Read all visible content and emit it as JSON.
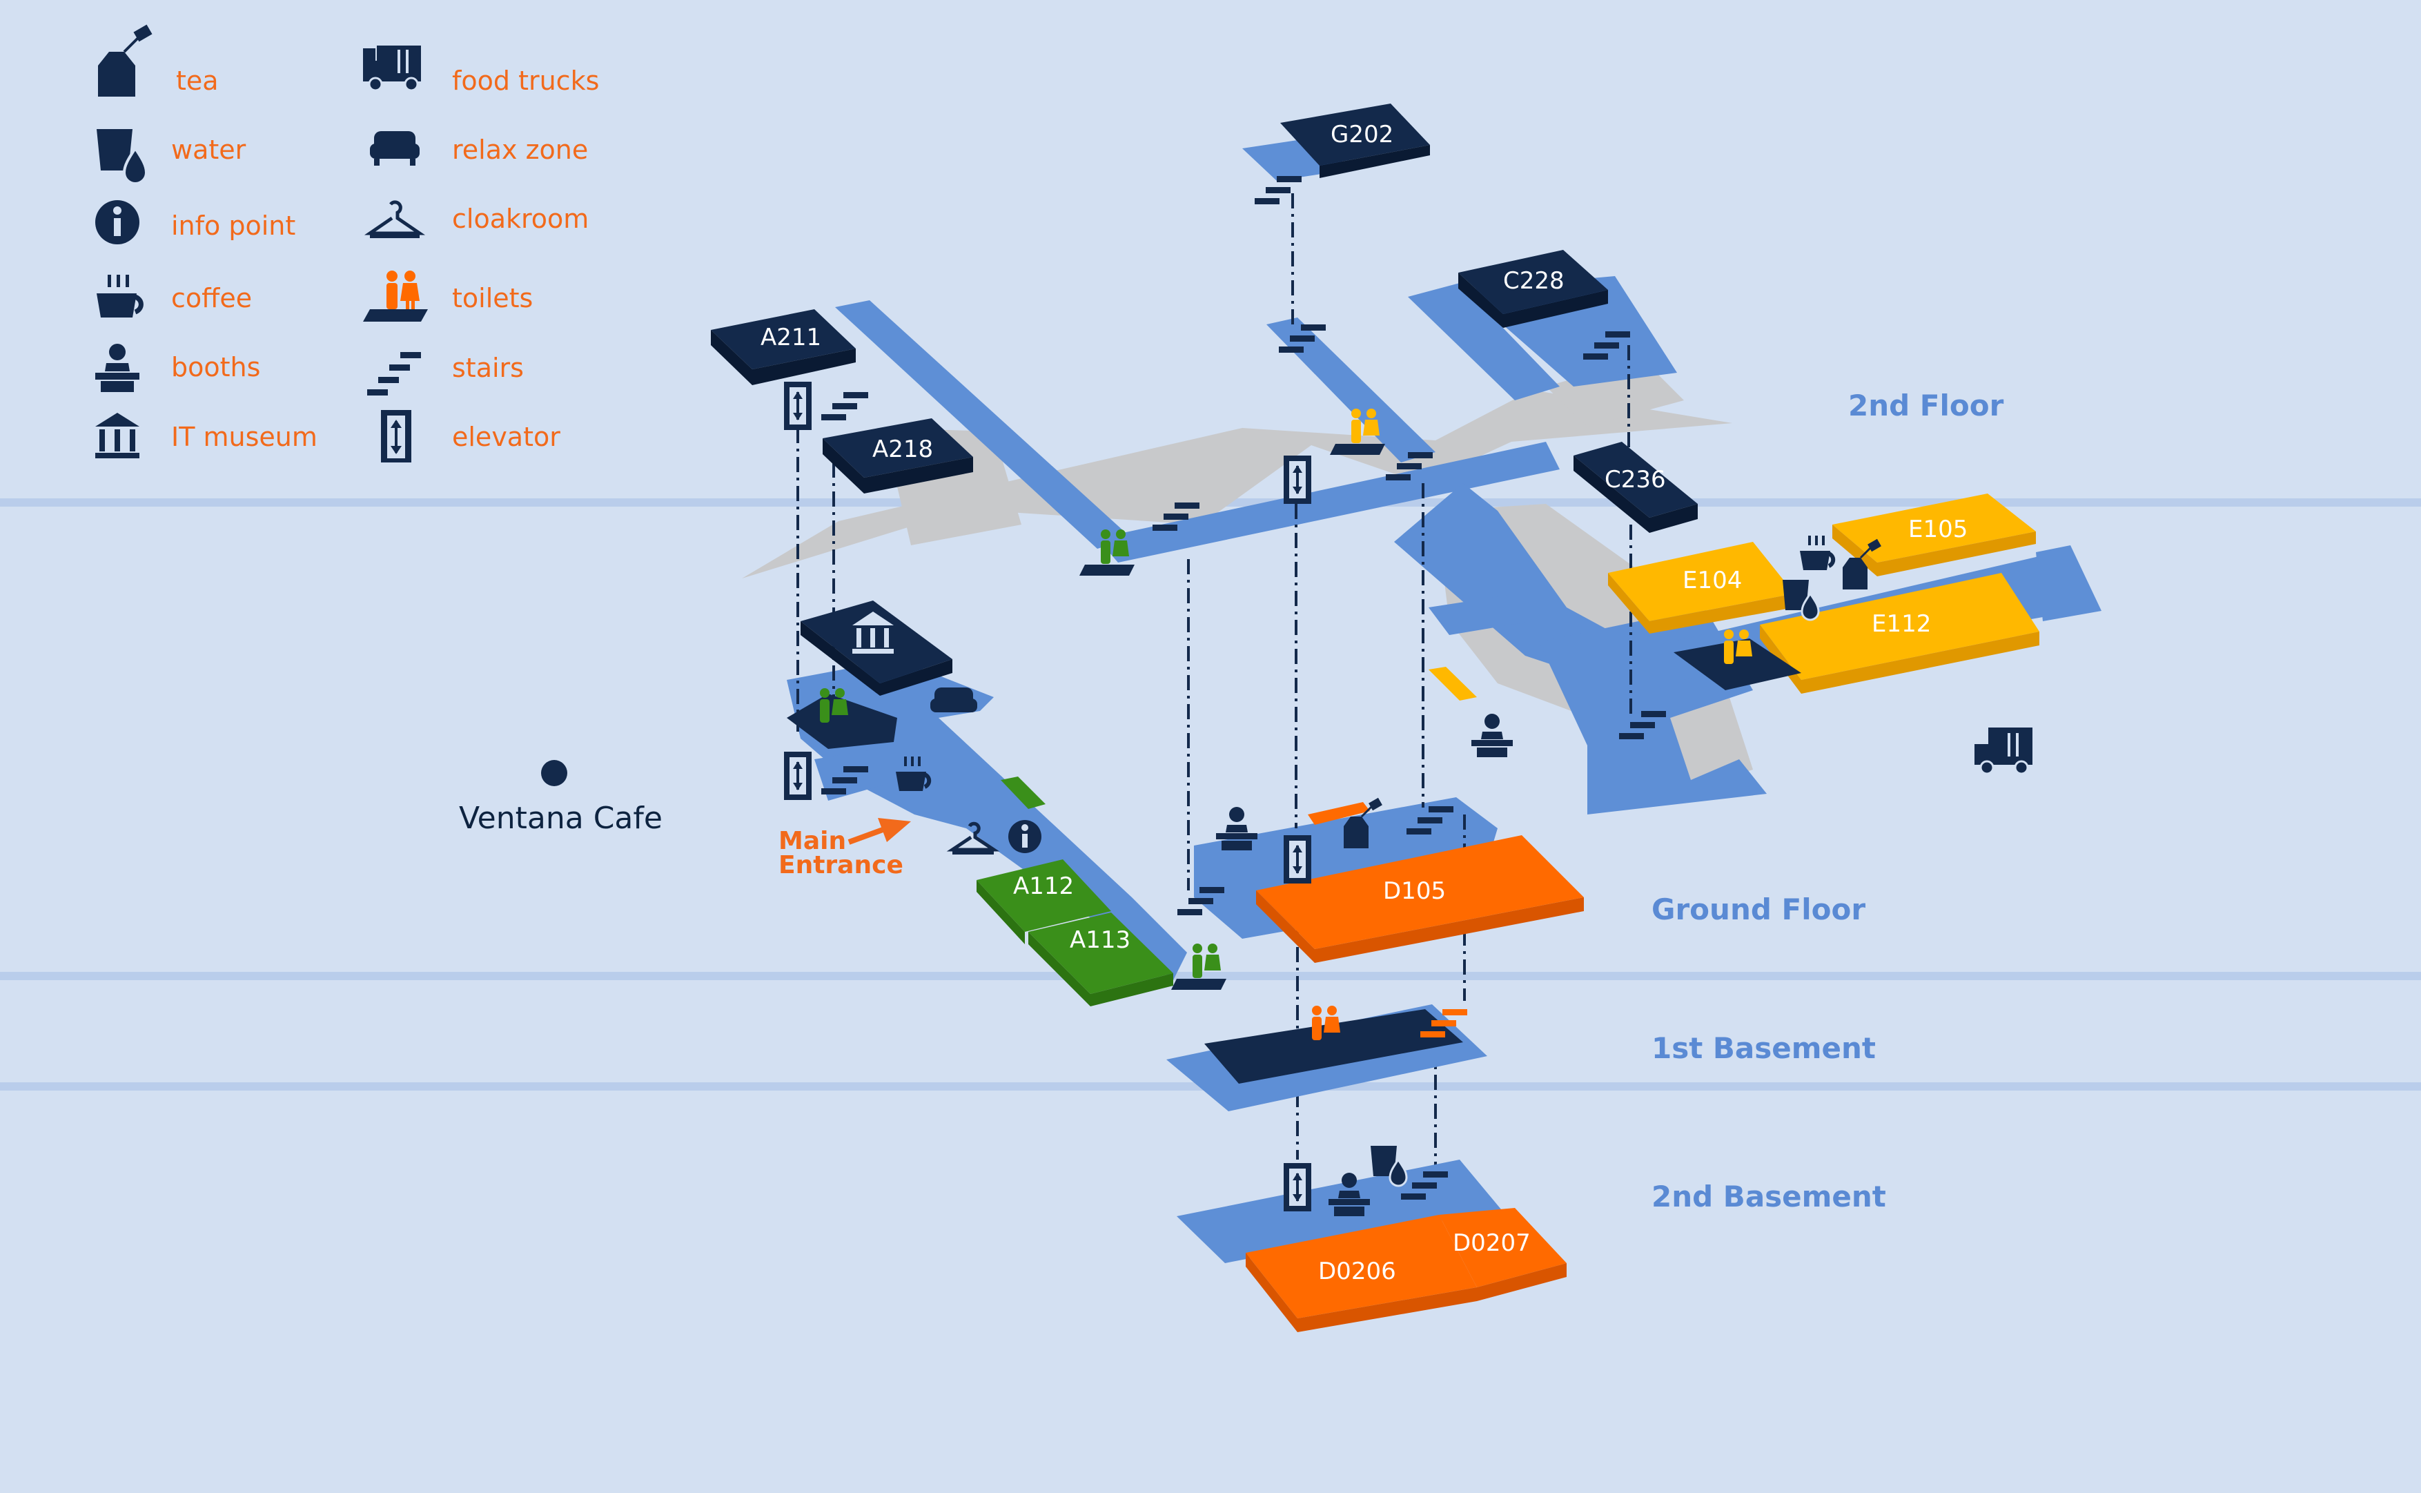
{
  "legend": [
    {
      "icon": "tea-icon",
      "label": "tea"
    },
    {
      "icon": "water-icon",
      "label": "water"
    },
    {
      "icon": "info-point-icon",
      "label": "info point"
    },
    {
      "icon": "coffee-icon",
      "label": "coffee"
    },
    {
      "icon": "booths-icon",
      "label": "booths"
    },
    {
      "icon": "it-museum-icon",
      "label": "IT museum"
    },
    {
      "icon": "food-truck-icon",
      "label": "food trucks"
    },
    {
      "icon": "relax-zone-icon",
      "label": "relax zone"
    },
    {
      "icon": "cloakroom-icon",
      "label": "cloakroom"
    },
    {
      "icon": "toilets-icon",
      "label": "toilets"
    },
    {
      "icon": "stairs-icon",
      "label": "stairs"
    },
    {
      "icon": "elevator-icon",
      "label": "elevator"
    }
  ],
  "floors": {
    "second_floor": "2nd Floor",
    "ground_floor": "Ground Floor",
    "first_basement": "1st Basement",
    "second_basement": "2nd Basement"
  },
  "rooms": {
    "g202": "G202",
    "a211": "A211",
    "a218": "A218",
    "c228": "C228",
    "c236": "C236",
    "e104": "E104",
    "e105": "E105",
    "e112": "E112",
    "a112": "A112",
    "a113": "A113",
    "d105": "D105",
    "d0206": "D0206",
    "d0207": "D0207"
  },
  "places": {
    "ventana_cafe": "Ventana Cafe",
    "main_entrance_line1": "Main",
    "main_entrance_line2": "Entrance"
  },
  "colors": {
    "background": "#d3e0f2",
    "navy": "#13294b",
    "floor_blue": "#5e8fd6",
    "gray_area": "#c8c9cb",
    "orange": "#ff6a00",
    "yellow": "#ffb800",
    "green": "#3a8f1a",
    "legend_text": "#f26a1b",
    "floor_label": "#5a8ad4"
  }
}
